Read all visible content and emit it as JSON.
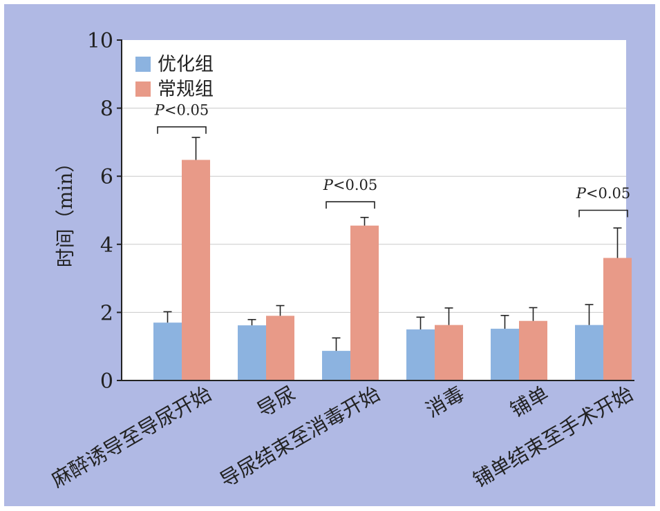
{
  "chart_data": {
    "type": "bar",
    "title": "",
    "xlabel": "",
    "ylabel": "时间（min）",
    "ylim": [
      0,
      10
    ],
    "yticks": [
      0,
      2,
      4,
      6,
      8,
      10
    ],
    "grid": true,
    "legend_position": "top-left",
    "categories": [
      "麻醉诱导至导尿开始",
      "导尿",
      "导尿结束至消毒开始",
      "消毒",
      "铺单",
      "铺单结束至手术开始"
    ],
    "series": [
      {
        "name": "优化组",
        "color": "#8cb3e0",
        "values": [
          1.7,
          1.62,
          0.87,
          1.5,
          1.52,
          1.63
        ],
        "errors": [
          0.32,
          0.17,
          0.38,
          0.36,
          0.39,
          0.6
        ]
      },
      {
        "name": "常规组",
        "color": "#e89a88",
        "values": [
          6.48,
          1.9,
          4.55,
          1.63,
          1.75,
          3.6
        ],
        "errors": [
          0.66,
          0.3,
          0.24,
          0.5,
          0.39,
          0.88
        ]
      }
    ],
    "annotations": [
      {
        "category_index": 0,
        "label_italic": "P",
        "label_rest": "<0.05",
        "bracket_y": 7.45,
        "text_y": 7.8
      },
      {
        "category_index": 2,
        "label_italic": "P",
        "label_rest": "<0.05",
        "bracket_y": 5.25,
        "text_y": 5.6
      },
      {
        "category_index": 5,
        "label_italic": "P",
        "label_rest": "<0.05",
        "bracket_y": 5.0,
        "text_y": 5.35
      }
    ]
  }
}
